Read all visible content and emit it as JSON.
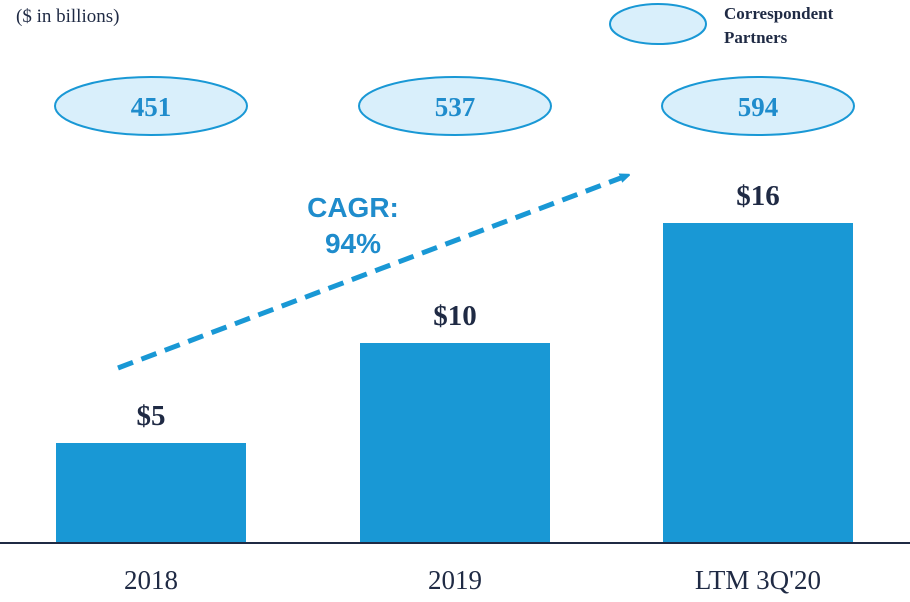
{
  "chart_data": {
    "type": "bar",
    "unit_label": "($ in billions)",
    "categories": [
      "2018",
      "2019",
      "LTM 3Q'20"
    ],
    "values": [
      5,
      10,
      16
    ],
    "value_labels": [
      "$5",
      "$10",
      "$16"
    ],
    "bar_color": "#1998d5",
    "ylim": [
      0,
      17.5
    ],
    "correspondent_partners": {
      "legend_label": "Correspondent Partners",
      "values": [
        "451",
        "537",
        "594"
      ],
      "bubble_fill": "#d9effb",
      "bubble_stroke": "#1998d5",
      "text_color": "#1f8ccc"
    },
    "annotation": {
      "line1": "CAGR:",
      "line2": "94%",
      "color": "#1f8ccc"
    }
  }
}
